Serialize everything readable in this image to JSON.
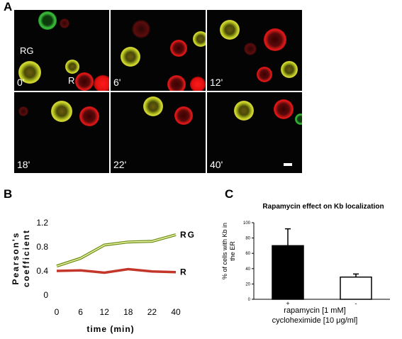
{
  "panels": {
    "a": {
      "letter": "A",
      "cell_labels": {
        "rg": "RG",
        "r": "R"
      },
      "tiles": [
        {
          "time": "0'"
        },
        {
          "time": "6'"
        },
        {
          "time": "12'"
        },
        {
          "time": "18'"
        },
        {
          "time": "22'"
        },
        {
          "time": "40'"
        }
      ]
    },
    "b": {
      "letter": "B"
    },
    "c": {
      "letter": "C"
    }
  },
  "chart_data": [
    {
      "type": "line",
      "panel": "B",
      "categories": [
        "0",
        "6",
        "12",
        "18",
        "22",
        "40"
      ],
      "series": [
        {
          "name": "RG",
          "values": [
            0.48,
            0.61,
            0.83,
            0.88,
            0.89,
            1.0
          ],
          "color": "#a8cc3a"
        },
        {
          "name": "R",
          "values": [
            0.4,
            0.41,
            0.37,
            0.43,
            0.39,
            0.38
          ],
          "color": "#c4362a"
        }
      ],
      "xlabel": "time (min)",
      "ylabel_lines": [
        "Pearson's",
        "coefficient"
      ],
      "ylim": [
        0,
        1.2
      ],
      "yticks": [
        "0",
        "0.4",
        "0.8",
        "1.2"
      ],
      "ytick_values": [
        0,
        0.4,
        0.8,
        1.2
      ],
      "legend": "end-of-line labels",
      "grid": false
    },
    {
      "type": "bar",
      "panel": "C",
      "title": "Rapamycin effect on Kb localization",
      "categories": [
        "+",
        "-"
      ],
      "values": [
        70,
        29
      ],
      "errors": [
        22,
        4
      ],
      "bar_fills": [
        "#000000",
        "#ffffff"
      ],
      "ylabel_lines": [
        "% of cells with Kb in",
        "the ER"
      ],
      "ylim": [
        0,
        100
      ],
      "yticks": [
        "0",
        "20",
        "40",
        "60",
        "80",
        "100"
      ],
      "ytick_values": [
        0,
        20,
        40,
        60,
        80,
        100
      ],
      "xlabel_lines": [
        "rapamycin [1 mM]",
        "cycloheximide [10 μg/ml]"
      ],
      "grid": false
    }
  ]
}
